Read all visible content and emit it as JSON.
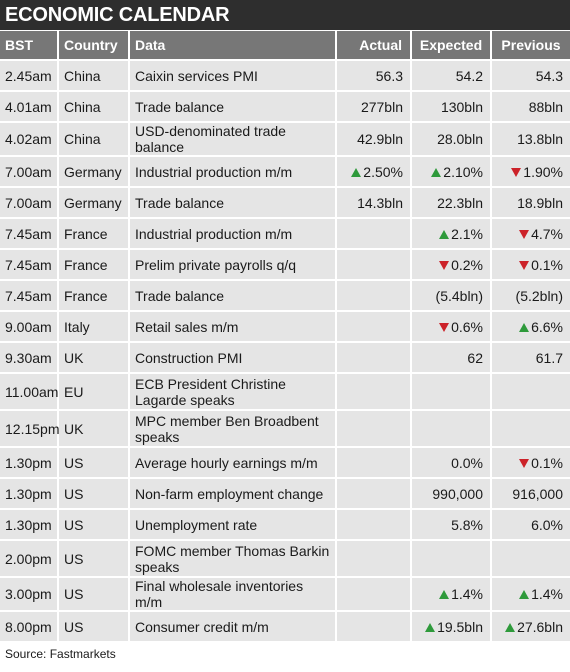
{
  "title": "ECONOMIC CALENDAR",
  "columns": {
    "bst": "BST",
    "country": "Country",
    "data": "Data",
    "actual": "Actual",
    "expected": "Expected",
    "previous": "Previous"
  },
  "colors": {
    "up": "#2e9a3b",
    "down": "#cc2229",
    "header": "#777777",
    "title_bar": "#2e2e2e"
  },
  "rows": [
    {
      "bst": "2.45am",
      "country": "China",
      "data": "Caixin services PMI",
      "actual": "56.3",
      "actual_dir": "",
      "expected": "54.2",
      "expected_dir": "",
      "previous": "54.3",
      "previous_dir": ""
    },
    {
      "bst": "4.01am",
      "country": "China",
      "data": "Trade balance",
      "actual": "277bln",
      "actual_dir": "",
      "expected": "130bln",
      "expected_dir": "",
      "previous": "88bln",
      "previous_dir": ""
    },
    {
      "bst": "4.02am",
      "country": "China",
      "data": "USD-denominated trade balance",
      "actual": "42.9bln",
      "actual_dir": "",
      "expected": "28.0bln",
      "expected_dir": "",
      "previous": "13.8bln",
      "previous_dir": ""
    },
    {
      "bst": "7.00am",
      "country": "Germany",
      "data": "Industrial production m/m",
      "actual": "2.50%",
      "actual_dir": "up",
      "expected": "2.10%",
      "expected_dir": "up",
      "previous": "1.90%",
      "previous_dir": "down"
    },
    {
      "bst": "7.00am",
      "country": "Germany",
      "data": "Trade balance",
      "actual": "14.3bln",
      "actual_dir": "",
      "expected": "22.3bln",
      "expected_dir": "",
      "previous": "18.9bln",
      "previous_dir": ""
    },
    {
      "bst": "7.45am",
      "country": "France",
      "data": "Industrial production m/m",
      "actual": "",
      "actual_dir": "",
      "expected": "2.1%",
      "expected_dir": "up",
      "previous": "4.7%",
      "previous_dir": "down"
    },
    {
      "bst": "7.45am",
      "country": "France",
      "data": "Prelim private payrolls q/q",
      "actual": "",
      "actual_dir": "",
      "expected": "0.2%",
      "expected_dir": "down",
      "previous": "0.1%",
      "previous_dir": "down"
    },
    {
      "bst": "7.45am",
      "country": "France",
      "data": "Trade balance",
      "actual": "",
      "actual_dir": "",
      "expected": "(5.4bln)",
      "expected_dir": "",
      "previous": "(5.2bln)",
      "previous_dir": ""
    },
    {
      "bst": "9.00am",
      "country": "Italy",
      "data": "Retail sales m/m",
      "actual": "",
      "actual_dir": "",
      "expected": "0.6%",
      "expected_dir": "down",
      "previous": "6.6%",
      "previous_dir": "up"
    },
    {
      "bst": "9.30am",
      "country": "UK",
      "data": "Construction PMI",
      "actual": "",
      "actual_dir": "",
      "expected": "62",
      "expected_dir": "",
      "previous": "61.7",
      "previous_dir": ""
    },
    {
      "bst": "11.00am",
      "country": "EU",
      "data": "ECB President Christine Lagarde speaks",
      "actual": "",
      "actual_dir": "",
      "expected": "",
      "expected_dir": "",
      "previous": "",
      "previous_dir": "",
      "tall": true
    },
    {
      "bst": "12.15pm",
      "country": "UK",
      "data": "MPC member Ben Broadbent speaks",
      "actual": "",
      "actual_dir": "",
      "expected": "",
      "expected_dir": "",
      "previous": "",
      "previous_dir": "",
      "tall": true
    },
    {
      "bst": "1.30pm",
      "country": "US",
      "data": "Average hourly earnings m/m",
      "actual": "",
      "actual_dir": "",
      "expected": "0.0%",
      "expected_dir": "",
      "previous": "0.1%",
      "previous_dir": "down"
    },
    {
      "bst": "1.30pm",
      "country": "US",
      "data": "Non-farm employment change",
      "actual": "",
      "actual_dir": "",
      "expected": "990,000",
      "expected_dir": "",
      "previous": "916,000",
      "previous_dir": ""
    },
    {
      "bst": "1.30pm",
      "country": "US",
      "data": "Unemployment rate",
      "actual": "",
      "actual_dir": "",
      "expected": "5.8%",
      "expected_dir": "",
      "previous": "6.0%",
      "previous_dir": ""
    },
    {
      "bst": "2.00pm",
      "country": "US",
      "data": "FOMC member Thomas Barkin speaks",
      "actual": "",
      "actual_dir": "",
      "expected": "",
      "expected_dir": "",
      "previous": "",
      "previous_dir": "",
      "tall": true
    },
    {
      "bst": "3.00pm",
      "country": "US",
      "data": "Final wholesale inventories m/m",
      "actual": "",
      "actual_dir": "",
      "expected": "1.4%",
      "expected_dir": "up",
      "previous": "1.4%",
      "previous_dir": "up"
    },
    {
      "bst": "8.00pm",
      "country": "US",
      "data": "Consumer credit m/m",
      "actual": "",
      "actual_dir": "",
      "expected": "19.5bln",
      "expected_dir": "up",
      "previous": "27.6bln",
      "previous_dir": "up"
    }
  ],
  "source": "Source: Fastmarkets"
}
